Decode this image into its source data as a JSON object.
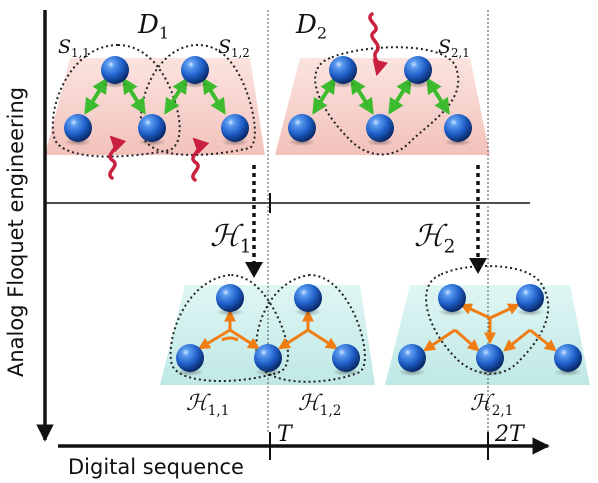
{
  "axes": {
    "y_label": "Analog Floquet engineering",
    "x_label": "Digital sequence",
    "tick_T": "T",
    "tick_2T": "2T"
  },
  "top": {
    "D1": {
      "base": "D",
      "sub": "1"
    },
    "D2": {
      "base": "D",
      "sub": "2"
    },
    "S11": {
      "base": "S",
      "sub": "1,1"
    },
    "S12": {
      "base": "S",
      "sub": "1,2"
    },
    "S21": {
      "base": "S",
      "sub": "2,1"
    }
  },
  "middle": {
    "H1": {
      "base": "ℋ",
      "sub": "1"
    },
    "H2": {
      "base": "ℋ",
      "sub": "2"
    }
  },
  "bottom": {
    "H11": {
      "base": "ℋ",
      "sub": "1,1"
    },
    "H12": {
      "base": "ℋ",
      "sub": "1,2"
    },
    "H21": {
      "base": "ℋ",
      "sub": "2,1"
    }
  },
  "colors": {
    "atom": "#1f5fc8",
    "pink_plate": "#f6cfc9",
    "cyan_plate": "#c5ecea",
    "green_arrow": "#3dbb2e",
    "orange_arrow": "#f07d14",
    "drive_wave": "#c8203e"
  }
}
